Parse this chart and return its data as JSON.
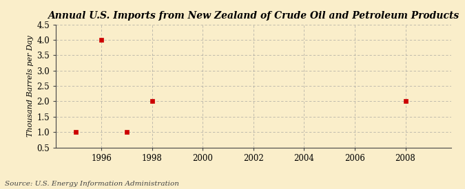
{
  "title": "Annual U.S. Imports from New Zealand of Crude Oil and Petroleum Products",
  "ylabel": "Thousand Barrels per Day",
  "source_text": "Source: U.S. Energy Information Administration",
  "data_x": [
    1995,
    1996,
    1997,
    1998,
    2008
  ],
  "data_y": [
    1.0,
    4.0,
    1.0,
    2.0,
    2.0
  ],
  "marker_color": "#cc0000",
  "marker_size": 4,
  "xlim": [
    1994.2,
    2009.8
  ],
  "ylim": [
    0.5,
    4.5
  ],
  "xticks": [
    1996,
    1998,
    2000,
    2002,
    2004,
    2006,
    2008
  ],
  "yticks": [
    0.5,
    1.0,
    1.5,
    2.0,
    2.5,
    3.0,
    3.5,
    4.0,
    4.5
  ],
  "ytick_labels": [
    "0.5",
    "1.0",
    "1.5",
    "2.0",
    "2.5",
    "3.0",
    "3.5",
    "4.0",
    "4.5"
  ],
  "background_color": "#faeeca",
  "grid_color": "#999999",
  "title_fontsize": 10,
  "label_fontsize": 8,
  "tick_fontsize": 8.5,
  "source_fontsize": 7.5
}
